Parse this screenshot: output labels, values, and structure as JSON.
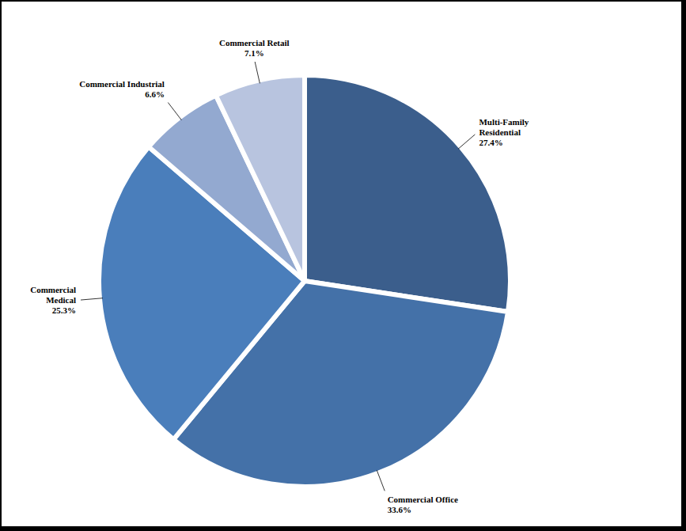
{
  "chart_data": {
    "type": "pie",
    "categories": [
      "Multi-Family Residential",
      "Commercial Office",
      "Commercial Medical",
      "Commercial Industrial",
      "Commercial Retail"
    ],
    "values": [
      27.4,
      33.6,
      25.3,
      6.6,
      7.1
    ],
    "value_labels": [
      "27.4%",
      "33.6%",
      "25.3%",
      "6.6%",
      "7.1%"
    ],
    "colors": [
      "#3b5e8c",
      "#4471a8",
      "#4a7ebb",
      "#93a9d0",
      "#b8c4df"
    ],
    "data_labels": true
  }
}
